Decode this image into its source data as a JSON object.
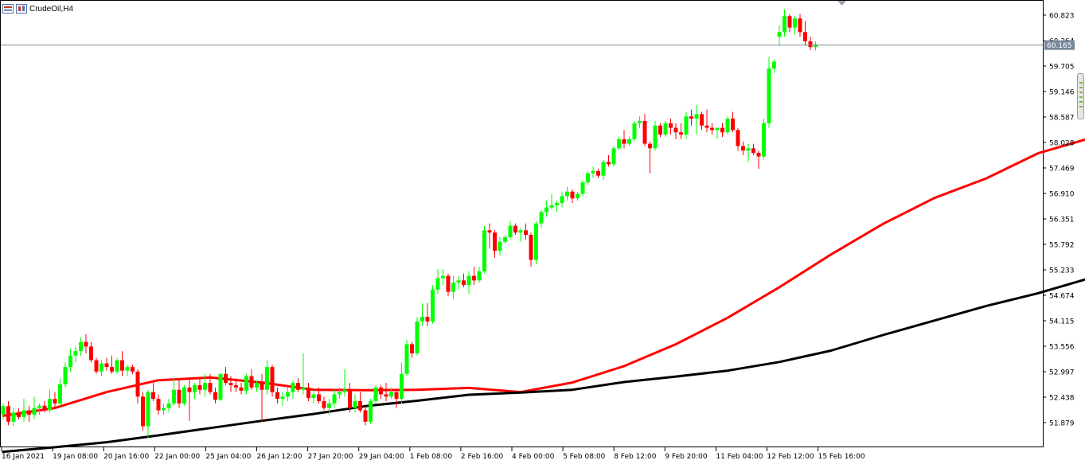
{
  "chart_data": {
    "type": "candlestick",
    "symbol_label": "CrudeOil,H4",
    "current_price": "60.165",
    "y_axis_ticks": [
      "60.823",
      "60.264",
      "59.705",
      "59.146",
      "58.587",
      "58.028",
      "57.469",
      "56.910",
      "56.351",
      "55.792",
      "55.233",
      "54.674",
      "54.115",
      "53.556",
      "52.997",
      "52.438",
      "51.879"
    ],
    "x_axis_ticks": [
      "16 Jan 2021",
      "19 Jan 08:00",
      "20 Jan 16:00",
      "22 Jan 00:00",
      "25 Jan 04:00",
      "26 Jan 12:00",
      "27 Jan 20:00",
      "29 Jan 04:00",
      "1 Feb 08:00",
      "2 Feb 16:00",
      "4 Feb 00:00",
      "5 Feb 08:00",
      "8 Feb 12:00",
      "9 Feb 20:00",
      "11 Feb 04:00",
      "12 Feb 12:00",
      "15 Feb 16:00"
    ],
    "ylim": [
      51.5,
      61.2
    ],
    "bull_color": "#00ff00",
    "bear_color": "#ff0000",
    "candles": [
      [
        52.06,
        52.3,
        51.95,
        52.24
      ],
      [
        52.24,
        52.35,
        51.82,
        51.9
      ],
      [
        51.9,
        52.2,
        51.8,
        52.1
      ],
      [
        52.1,
        52.2,
        51.95,
        52.0
      ],
      [
        52.0,
        52.4,
        51.9,
        52.15
      ],
      [
        52.15,
        52.25,
        51.9,
        52.05
      ],
      [
        52.05,
        52.45,
        51.95,
        52.2
      ],
      [
        52.2,
        52.3,
        52.05,
        52.25
      ],
      [
        52.25,
        52.35,
        52.1,
        52.15
      ],
      [
        52.15,
        52.6,
        52.1,
        52.4
      ],
      [
        52.4,
        52.55,
        52.2,
        52.3
      ],
      [
        52.3,
        52.85,
        52.25,
        52.72
      ],
      [
        52.72,
        53.2,
        52.65,
        53.1
      ],
      [
        53.1,
        53.5,
        53.0,
        53.35
      ],
      [
        53.35,
        53.55,
        53.2,
        53.45
      ],
      [
        53.45,
        53.75,
        53.35,
        53.65
      ],
      [
        53.65,
        53.82,
        53.4,
        53.55
      ],
      [
        53.55,
        53.65,
        53.2,
        53.25
      ],
      [
        53.25,
        53.3,
        52.95,
        53.0
      ],
      [
        53.0,
        53.25,
        52.9,
        53.18
      ],
      [
        53.18,
        53.3,
        53.02,
        53.1
      ],
      [
        53.1,
        53.35,
        52.95,
        53.0
      ],
      [
        53.0,
        53.3,
        52.95,
        53.25
      ],
      [
        53.25,
        53.45,
        52.9,
        53.02
      ],
      [
        53.02,
        53.15,
        52.9,
        53.1
      ],
      [
        53.1,
        53.15,
        52.95,
        53.0
      ],
      [
        53.0,
        53.05,
        52.3,
        52.45
      ],
      [
        52.45,
        52.55,
        51.7,
        51.8
      ],
      [
        51.8,
        52.6,
        51.55,
        52.55
      ],
      [
        52.55,
        52.75,
        52.35,
        52.4
      ],
      [
        52.4,
        52.5,
        52.05,
        52.15
      ],
      [
        52.15,
        52.3,
        52.05,
        52.2
      ],
      [
        52.2,
        52.4,
        52.1,
        52.3
      ],
      [
        52.3,
        52.85,
        52.25,
        52.6
      ],
      [
        52.6,
        52.85,
        52.2,
        52.3
      ],
      [
        52.3,
        52.7,
        52.25,
        52.65
      ],
      [
        52.65,
        52.85,
        51.92,
        52.55
      ],
      [
        52.55,
        52.75,
        52.4,
        52.7
      ],
      [
        52.7,
        52.85,
        52.5,
        52.6
      ],
      [
        52.6,
        52.95,
        52.45,
        52.75
      ],
      [
        52.75,
        52.95,
        52.5,
        52.55
      ],
      [
        52.55,
        52.65,
        52.3,
        52.38
      ],
      [
        52.38,
        52.95,
        52.35,
        52.95
      ],
      [
        52.95,
        53.1,
        52.7,
        52.75
      ],
      [
        52.75,
        52.9,
        52.55,
        52.7
      ],
      [
        52.7,
        52.85,
        52.55,
        52.65
      ],
      [
        52.65,
        52.75,
        52.5,
        52.58
      ],
      [
        52.58,
        52.95,
        52.5,
        52.9
      ],
      [
        52.9,
        53.05,
        52.6,
        52.65
      ],
      [
        52.65,
        52.8,
        52.55,
        52.75
      ],
      [
        52.75,
        52.95,
        51.9,
        52.6
      ],
      [
        52.6,
        53.25,
        52.5,
        53.1
      ],
      [
        53.1,
        53.15,
        52.45,
        52.55
      ],
      [
        52.55,
        52.65,
        52.3,
        52.4
      ],
      [
        52.4,
        52.55,
        52.25,
        52.45
      ],
      [
        52.45,
        52.65,
        52.35,
        52.55
      ],
      [
        52.55,
        52.8,
        52.4,
        52.75
      ],
      [
        52.75,
        52.85,
        52.55,
        52.6
      ],
      [
        52.6,
        53.4,
        52.5,
        52.65
      ],
      [
        52.65,
        52.75,
        52.35,
        52.42
      ],
      [
        52.42,
        52.6,
        52.3,
        52.5
      ],
      [
        52.5,
        52.65,
        52.3,
        52.35
      ],
      [
        52.35,
        52.45,
        52.15,
        52.2
      ],
      [
        52.2,
        52.4,
        52.05,
        52.3
      ],
      [
        52.3,
        52.6,
        52.2,
        52.5
      ],
      [
        52.5,
        52.65,
        52.4,
        52.55
      ],
      [
        52.55,
        53.05,
        52.45,
        52.6
      ],
      [
        52.6,
        52.75,
        52.1,
        52.2
      ],
      [
        52.2,
        52.5,
        52.1,
        52.35
      ],
      [
        52.35,
        52.55,
        52.1,
        52.15
      ],
      [
        52.15,
        52.25,
        51.82,
        51.9
      ],
      [
        51.9,
        52.4,
        51.85,
        52.35
      ],
      [
        52.35,
        52.7,
        52.3,
        52.65
      ],
      [
        52.65,
        52.7,
        52.4,
        52.5
      ],
      [
        52.5,
        52.75,
        52.35,
        52.45
      ],
      [
        52.45,
        52.65,
        52.4,
        52.55
      ],
      [
        52.55,
        52.6,
        52.2,
        52.4
      ],
      [
        52.4,
        53.2,
        52.3,
        52.95
      ],
      [
        52.95,
        53.7,
        52.9,
        53.6
      ],
      [
        53.6,
        53.65,
        53.3,
        53.4
      ],
      [
        53.4,
        54.2,
        53.35,
        54.1
      ],
      [
        54.1,
        54.5,
        54.0,
        54.2
      ],
      [
        54.2,
        54.5,
        54.0,
        54.1
      ],
      [
        54.1,
        54.9,
        54.05,
        54.8
      ],
      [
        54.8,
        55.25,
        54.7,
        55.05
      ],
      [
        55.05,
        55.25,
        54.9,
        55.1
      ],
      [
        55.1,
        55.15,
        54.65,
        54.75
      ],
      [
        54.75,
        55.1,
        54.6,
        54.95
      ],
      [
        54.95,
        55.1,
        54.8,
        55.0
      ],
      [
        55.0,
        55.15,
        54.85,
        54.9
      ],
      [
        54.9,
        55.2,
        54.7,
        55.1
      ],
      [
        55.1,
        55.3,
        54.9,
        55.0
      ],
      [
        55.0,
        55.3,
        54.95,
        55.2
      ],
      [
        55.2,
        56.2,
        55.15,
        56.1
      ],
      [
        56.1,
        56.25,
        55.7,
        56.05
      ],
      [
        56.05,
        56.1,
        55.5,
        55.65
      ],
      [
        55.65,
        55.95,
        55.55,
        55.85
      ],
      [
        55.85,
        56.0,
        55.8,
        55.95
      ],
      [
        55.95,
        56.3,
        55.9,
        56.2
      ],
      [
        56.2,
        56.25,
        56.0,
        56.05
      ],
      [
        56.05,
        56.15,
        55.85,
        56.1
      ],
      [
        56.1,
        56.25,
        55.9,
        56.0
      ],
      [
        56.0,
        56.05,
        55.3,
        55.45
      ],
      [
        55.45,
        56.3,
        55.35,
        56.25
      ],
      [
        56.25,
        56.55,
        56.15,
        56.5
      ],
      [
        56.5,
        56.75,
        56.4,
        56.6
      ],
      [
        56.6,
        56.9,
        56.55,
        56.65
      ],
      [
        56.65,
        56.75,
        56.5,
        56.7
      ],
      [
        56.7,
        56.95,
        56.6,
        56.85
      ],
      [
        56.85,
        57.05,
        56.75,
        56.95
      ],
      [
        56.95,
        57.0,
        56.7,
        56.8
      ],
      [
        56.8,
        56.95,
        56.75,
        56.9
      ],
      [
        56.9,
        57.2,
        56.85,
        57.15
      ],
      [
        57.15,
        57.4,
        57.1,
        57.35
      ],
      [
        57.35,
        57.5,
        57.25,
        57.4
      ],
      [
        57.4,
        57.45,
        57.25,
        57.3
      ],
      [
        57.3,
        57.65,
        57.2,
        57.6
      ],
      [
        57.6,
        57.75,
        57.5,
        57.55
      ],
      [
        57.55,
        57.95,
        57.5,
        57.9
      ],
      [
        57.9,
        58.15,
        57.85,
        58.1
      ],
      [
        58.1,
        58.3,
        57.9,
        58.0
      ],
      [
        58.0,
        58.15,
        57.95,
        58.1
      ],
      [
        58.1,
        58.5,
        58.05,
        58.45
      ],
      [
        58.45,
        58.6,
        58.35,
        58.5
      ],
      [
        58.5,
        58.65,
        57.95,
        58.0
      ],
      [
        58.0,
        58.05,
        57.35,
        57.9
      ],
      [
        57.9,
        58.5,
        57.85,
        58.4
      ],
      [
        58.4,
        58.45,
        58.15,
        58.2
      ],
      [
        58.2,
        58.5,
        58.15,
        58.45
      ],
      [
        58.45,
        58.55,
        58.2,
        58.35
      ],
      [
        58.35,
        58.45,
        58.1,
        58.25
      ],
      [
        58.25,
        58.45,
        58.1,
        58.2
      ],
      [
        58.2,
        58.7,
        58.1,
        58.6
      ],
      [
        58.6,
        58.75,
        58.4,
        58.55
      ],
      [
        58.55,
        58.85,
        58.2,
        58.65
      ],
      [
        58.65,
        58.7,
        58.3,
        58.4
      ],
      [
        58.4,
        58.75,
        58.25,
        58.35
      ],
      [
        58.35,
        58.45,
        58.2,
        58.3
      ],
      [
        58.3,
        58.35,
        58.1,
        58.35
      ],
      [
        58.35,
        58.45,
        58.15,
        58.25
      ],
      [
        58.25,
        58.6,
        58.2,
        58.55
      ],
      [
        58.55,
        58.7,
        58.25,
        58.3
      ],
      [
        58.3,
        58.35,
        57.85,
        57.95
      ],
      [
        57.95,
        58.05,
        57.75,
        57.85
      ],
      [
        57.85,
        58.0,
        57.6,
        57.9
      ],
      [
        57.9,
        58.0,
        57.75,
        57.8
      ],
      [
        57.8,
        57.85,
        57.45,
        57.72
      ],
      [
        57.72,
        58.55,
        57.65,
        58.45
      ],
      [
        58.45,
        59.9,
        58.35,
        59.65
      ],
      [
        59.65,
        59.85,
        59.55,
        59.8
      ],
      [
        60.35,
        60.6,
        60.15,
        60.45
      ],
      [
        60.45,
        60.95,
        60.35,
        60.8
      ],
      [
        60.8,
        60.85,
        60.45,
        60.55
      ],
      [
        60.55,
        60.8,
        60.4,
        60.75
      ],
      [
        60.75,
        60.85,
        60.35,
        60.45
      ],
      [
        60.45,
        60.7,
        60.15,
        60.25
      ],
      [
        60.25,
        60.35,
        60.05,
        60.12
      ],
      [
        60.12,
        60.25,
        60.05,
        60.18
      ]
    ],
    "series": [
      {
        "name": "",
        "color": "#ff0000",
        "points": [
          [
            0,
            52.03
          ],
          [
            10,
            52.2
          ],
          [
            20,
            52.55
          ],
          [
            30,
            52.81
          ],
          [
            40,
            52.87
          ],
          [
            50,
            52.76
          ],
          [
            60,
            52.6
          ],
          [
            70,
            52.59
          ],
          [
            80,
            52.6
          ],
          [
            90,
            52.64
          ],
          [
            100,
            52.55
          ],
          [
            110,
            52.76
          ],
          [
            120,
            53.12
          ],
          [
            130,
            53.6
          ],
          [
            140,
            54.18
          ],
          [
            150,
            54.85
          ],
          [
            160,
            55.57
          ],
          [
            170,
            56.24
          ],
          [
            180,
            56.81
          ],
          [
            190,
            57.24
          ],
          [
            200,
            57.79
          ],
          [
            210,
            58.12
          ]
        ]
      },
      {
        "name": "",
        "color": "#000000",
        "points": [
          [
            0,
            51.24
          ],
          [
            10,
            51.34
          ],
          [
            20,
            51.45
          ],
          [
            30,
            51.6
          ],
          [
            40,
            51.76
          ],
          [
            50,
            51.92
          ],
          [
            60,
            52.07
          ],
          [
            70,
            52.24
          ],
          [
            80,
            52.36
          ],
          [
            90,
            52.49
          ],
          [
            100,
            52.54
          ],
          [
            110,
            52.6
          ],
          [
            120,
            52.77
          ],
          [
            130,
            52.89
          ],
          [
            140,
            53.02
          ],
          [
            150,
            53.21
          ],
          [
            160,
            53.46
          ],
          [
            170,
            53.8
          ],
          [
            180,
            54.12
          ],
          [
            190,
            54.44
          ],
          [
            200,
            54.72
          ],
          [
            210,
            55.05
          ],
          [
            220,
            55.45
          ]
        ]
      }
    ]
  }
}
